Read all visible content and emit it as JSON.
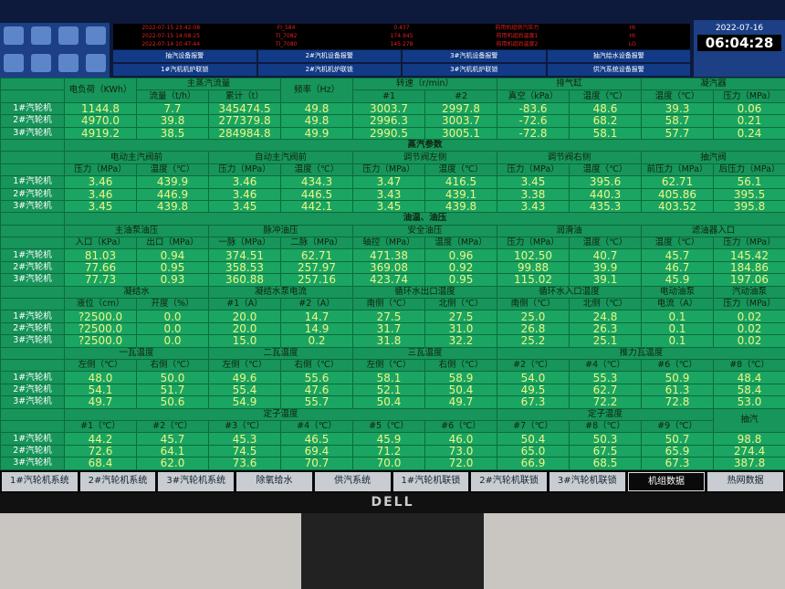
{
  "header": {
    "alarms": [
      {
        "time": "2022-07-15 23:42:08",
        "tag": "FI_584",
        "value": "0.437",
        "desc": "前用机组供汽压力",
        "level": "HI"
      },
      {
        "time": "2022-07-15 14:08:25",
        "tag": "TI_7082",
        "value": "174.945",
        "desc": "前用机组后温度1",
        "level": "HI"
      },
      {
        "time": "2022-07-14 10:47:44",
        "tag": "TI_7080",
        "value": "145.278",
        "desc": "前用机组后温度2",
        "level": "LO"
      }
    ],
    "buttons": [
      "抽汽设备报警",
      "2#汽机设备报警",
      "3#汽机设备报警",
      "抽汽给水设备报警",
      "1#汽机机炉联锁",
      "2#汽机机炉联锁",
      "3#汽机机炉联锁",
      "供汽系统设备报警"
    ],
    "date": "2022-07-16",
    "time": "06:04:28"
  },
  "sections": [
    {
      "groups": [
        {
          "name": "电负荷（KWh）"
        },
        {
          "name": "主蒸汽流量",
          "cols": [
            "流量（t/h）",
            "累计（t）"
          ]
        },
        {
          "name": "频率（Hz）"
        },
        {
          "name": "转速（r/min）",
          "cols": [
            "#1",
            "#2"
          ]
        },
        {
          "name": "排气缸",
          "cols": [
            "真空（kPa）",
            "温度（℃）"
          ]
        },
        {
          "name": "凝汽器",
          "cols": [
            "温度（℃）",
            "压力（MPa）"
          ]
        }
      ],
      "rows": [
        {
          "label": "1#汽轮机",
          "values": [
            "1144.8",
            "7.7",
            "345474.5",
            "49.8",
            "3003.7",
            "2997.8",
            "-83.6",
            "48.6",
            "39.3",
            "0.06"
          ]
        },
        {
          "label": "2#汽轮机",
          "values": [
            "4970.0",
            "39.8",
            "277379.8",
            "49.8",
            "2996.3",
            "3003.7",
            "-72.6",
            "68.2",
            "58.7",
            "0.21"
          ]
        },
        {
          "label": "3#汽轮机",
          "values": [
            "4919.2",
            "38.5",
            "284984.8",
            "49.9",
            "2990.5",
            "3005.1",
            "-72.8",
            "58.1",
            "57.7",
            "0.24"
          ]
        }
      ]
    },
    {
      "title": "蒸汽参数",
      "groups": [
        {
          "name": "电动主汽阀前",
          "cols": [
            "压力（MPa）",
            "温度（℃）"
          ]
        },
        {
          "name": "自动主汽阀前",
          "cols": [
            "压力（MPa）",
            "温度（℃）"
          ]
        },
        {
          "name": "调节阀左侧",
          "cols": [
            "压力（MPa）",
            "温度（℃）"
          ]
        },
        {
          "name": "调节阀右侧",
          "cols": [
            "压力（MPa）",
            "温度（℃）"
          ]
        },
        {
          "name": "抽汽阀",
          "cols": [
            "前压力（MPa）",
            "后压力（MPa）"
          ]
        }
      ],
      "rows": [
        {
          "label": "1#汽轮机",
          "values": [
            "3.46",
            "439.9",
            "3.46",
            "434.3",
            "3.47",
            "416.5",
            "3.45",
            "395.6",
            "62.71",
            "56.1"
          ]
        },
        {
          "label": "2#汽轮机",
          "values": [
            "3.46",
            "446.9",
            "3.46",
            "446.5",
            "3.43",
            "439.1",
            "3.38",
            "440.3",
            "405.86",
            "395.5"
          ]
        },
        {
          "label": "3#汽轮机",
          "values": [
            "3.45",
            "439.8",
            "3.45",
            "442.1",
            "3.45",
            "439.8",
            "3.43",
            "435.3",
            "403.52",
            "395.8"
          ]
        }
      ]
    },
    {
      "title": "油温、油压",
      "groups": [
        {
          "name": "主油泵油压",
          "cols": [
            "入口（KPa）",
            "出口（MPa）"
          ]
        },
        {
          "name": "脉冲油压",
          "cols": [
            "一脉（MPa）",
            "二脉（MPa）"
          ]
        },
        {
          "name": "安全油压",
          "cols": [
            "轴控（MPa）",
            "温度（MPa）"
          ]
        },
        {
          "name": "润滑油",
          "cols": [
            "压力（MPa）",
            "温度（℃）"
          ]
        },
        {
          "name": "滤油器入口",
          "cols": [
            "温度（℃）",
            "压力（MPa）"
          ]
        }
      ],
      "rows": [
        {
          "label": "1#汽轮机",
          "values": [
            "81.03",
            "0.94",
            "374.51",
            "62.71",
            "471.38",
            "0.96",
            "102.50",
            "40.7",
            "45.7",
            "145.42"
          ]
        },
        {
          "label": "2#汽轮机",
          "values": [
            "77.66",
            "0.95",
            "358.53",
            "257.97",
            "369.08",
            "0.92",
            "99.88",
            "39.9",
            "46.7",
            "184.86"
          ]
        },
        {
          "label": "3#汽轮机",
          "values": [
            "77.73",
            "0.93",
            "360.88",
            "257.16",
            "423.74",
            "0.95",
            "115.02",
            "39.1",
            "45.9",
            "197.06"
          ]
        }
      ]
    },
    {
      "groups": [
        {
          "name": "凝结水",
          "cols": [
            "液位（cm）",
            "开度（%）"
          ]
        },
        {
          "name": "凝结水泵电流",
          "cols": [
            "#1（A）",
            "#2（A）"
          ]
        },
        {
          "name": "循环水出口温度",
          "cols": [
            "南侧（℃）",
            "北侧（℃）"
          ]
        },
        {
          "name": "循环水入口温度",
          "cols": [
            "南侧（℃）",
            "北侧（℃）"
          ]
        },
        {
          "name": "电动油泵",
          "cols": [
            "电流（A）"
          ]
        },
        {
          "name": "汽动油泵",
          "cols": [
            "压力（MPa）"
          ]
        }
      ],
      "rows": [
        {
          "label": "1#汽轮机",
          "values": [
            "?2500.0",
            "0.0",
            "20.0",
            "14.7",
            "27.5",
            "27.5",
            "25.0",
            "24.8",
            "0.1",
            "0.02"
          ]
        },
        {
          "label": "2#汽轮机",
          "values": [
            "?2500.0",
            "0.0",
            "20.0",
            "14.9",
            "31.7",
            "31.0",
            "26.8",
            "26.3",
            "0.1",
            "0.02"
          ]
        },
        {
          "label": "3#汽轮机",
          "values": [
            "?2500.0",
            "0.0",
            "15.0",
            "0.2",
            "31.8",
            "32.2",
            "25.2",
            "25.1",
            "0.1",
            "0.02"
          ]
        }
      ]
    },
    {
      "groups": [
        {
          "name": "一瓦温度",
          "cols": [
            "左侧（℃）",
            "右侧（℃）"
          ]
        },
        {
          "name": "二瓦温度",
          "cols": [
            "左侧（℃）",
            "右侧（℃）"
          ]
        },
        {
          "name": "三瓦温度",
          "cols": [
            "左侧（℃）",
            "右侧（℃）"
          ]
        },
        {
          "name": "推力瓦温度",
          "cols": [
            "#2（℃）",
            "#4（℃）",
            "#6（℃）",
            "#8（℃）"
          ]
        }
      ],
      "rows": [
        {
          "label": "1#汽轮机",
          "values": [
            "48.0",
            "50.0",
            "49.6",
            "55.6",
            "58.1",
            "58.9",
            "54.0",
            "55.3",
            "50.9",
            "48.4"
          ]
        },
        {
          "label": "2#汽轮机",
          "values": [
            "54.1",
            "51.7",
            "55.4",
            "47.6",
            "52.1",
            "50.4",
            "49.5",
            "62.7",
            "61.3",
            "58.4"
          ]
        },
        {
          "label": "3#汽轮机",
          "values": [
            "49.7",
            "50.6",
            "54.9",
            "55.7",
            "50.4",
            "49.7",
            "67.3",
            "72.2",
            "72.8",
            "53.0"
          ]
        }
      ]
    },
    {
      "groups": [
        {
          "name": "定子温度",
          "cols": [
            "#1（℃）",
            "#2（℃）",
            "#3（℃）",
            "#4（℃）",
            "#5（℃）",
            "#6（℃）"
          ]
        },
        {
          "name": "定子温度",
          "cols": [
            "#7（℃）",
            "#8（℃）",
            "#9（℃）"
          ]
        },
        {
          "name": "抽汽"
        }
      ],
      "rows": [
        {
          "label": "1#汽轮机",
          "values": [
            "44.2",
            "45.7",
            "45.3",
            "46.5",
            "45.9",
            "46.0",
            "50.4",
            "50.3",
            "50.7",
            "98.8"
          ]
        },
        {
          "label": "2#汽轮机",
          "values": [
            "72.6",
            "64.1",
            "74.5",
            "69.4",
            "71.2",
            "73.0",
            "65.0",
            "67.5",
            "65.9",
            "274.4"
          ]
        },
        {
          "label": "3#汽轮机",
          "values": [
            "68.4",
            "62.0",
            "73.6",
            "70.7",
            "70.0",
            "72.0",
            "66.9",
            "68.5",
            "67.3",
            "387.8"
          ]
        }
      ]
    }
  ],
  "tabs": [
    "1#汽轮机系统",
    "2#汽轮机系统",
    "3#汽轮机系统",
    "除氧给水",
    "供汽系统",
    "1#汽轮机联锁",
    "2#汽轮机联锁",
    "3#汽轮机联锁",
    "机组数据",
    "热网数据"
  ],
  "active_tab": "机组数据",
  "logo": "DELL"
}
